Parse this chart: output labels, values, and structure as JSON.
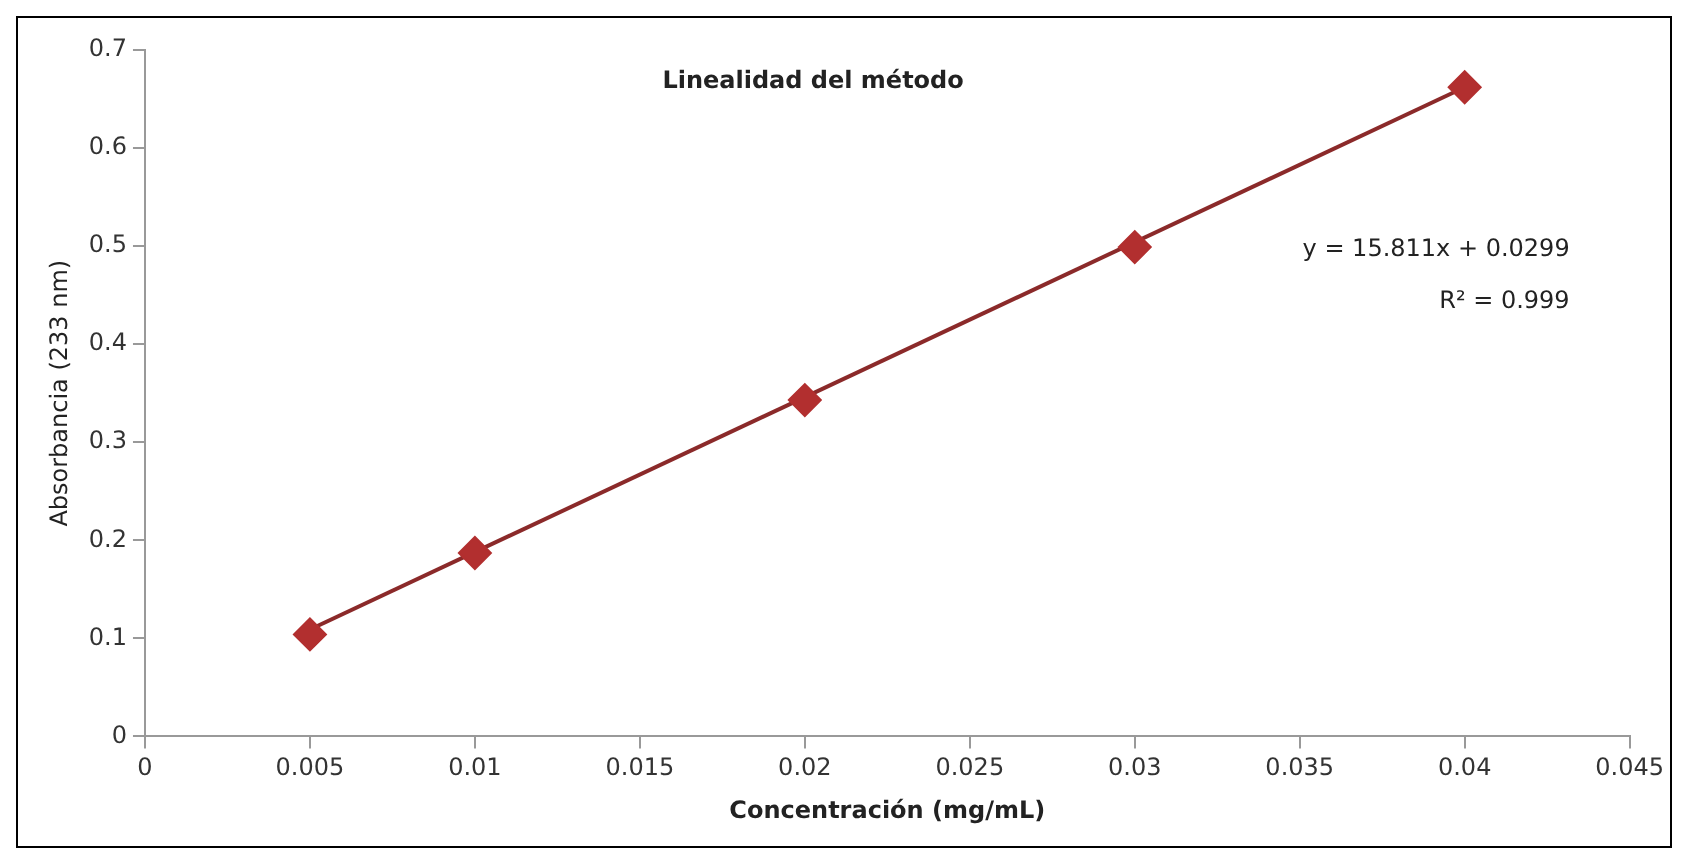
{
  "chart_data": {
    "type": "scatter",
    "title": "Linealidad del método",
    "xlabel": "Concentración (mg/mL)",
    "ylabel": "Absorbancia (233 nm)",
    "x": [
      0.005,
      0.01,
      0.02,
      0.03,
      0.04
    ],
    "series": [
      {
        "color": "#b22f2f",
        "values": [
          0.104,
          0.187,
          0.343,
          0.499,
          0.662
        ],
        "marker": "diamond"
      },
      {
        "type": "line",
        "color": "#8b2a2a",
        "x": [
          0.005,
          0.04
        ],
        "values": [
          0.109,
          0.662
        ],
        "marker": "none",
        "line_style": "solid"
      }
    ],
    "xlim": [
      0,
      0.045
    ],
    "xticks": [
      0,
      0.005,
      0.01,
      0.015,
      0.02,
      0.025,
      0.03,
      0.035,
      0.04,
      0.045
    ],
    "ylim": [
      0,
      0.7
    ],
    "yticks": [
      0,
      0.1,
      0.2,
      0.3,
      0.4,
      0.5,
      0.6,
      0.7
    ],
    "grid": false,
    "legend": false,
    "annotations": [
      "y = 15.811x + 0.0299",
      "R² = 0.999"
    ]
  }
}
